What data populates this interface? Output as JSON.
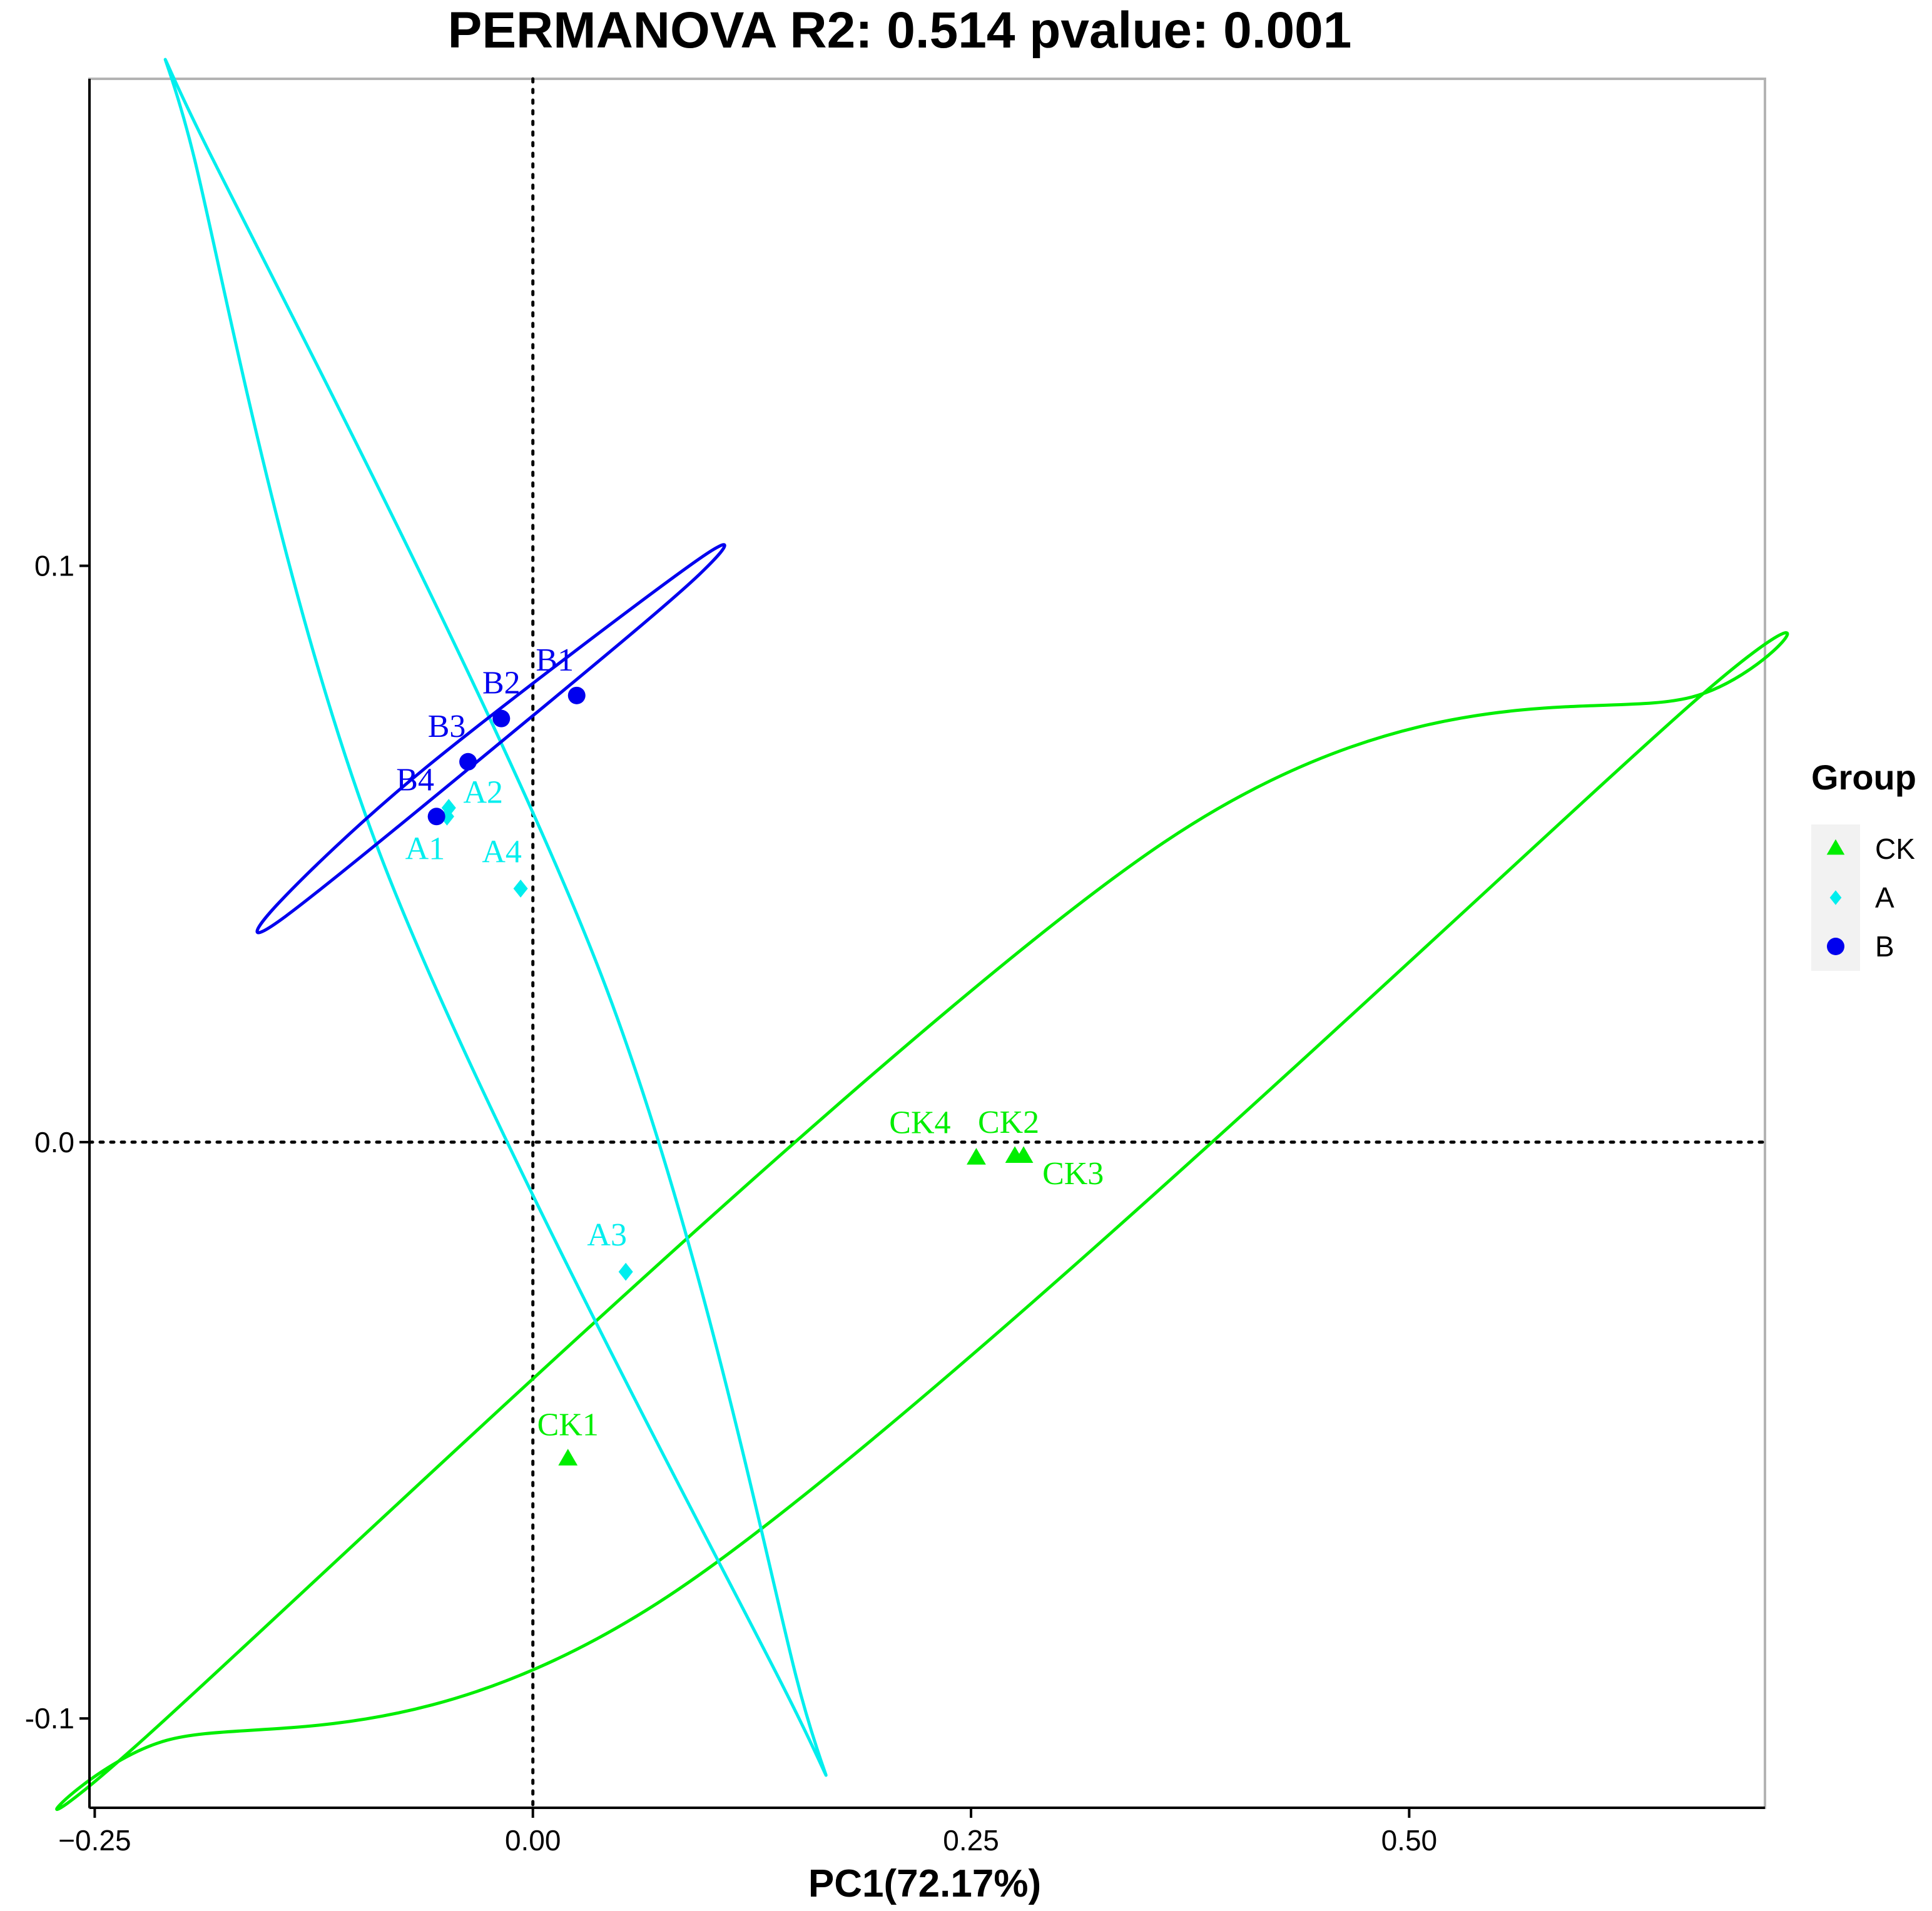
{
  "chart_data": {
    "type": "scatter",
    "title": "PERMANOVA R2: 0.514 pvalue: 0.001",
    "xlabel": "PC1(72.17%)",
    "ylabel": "",
    "xlim": [
      -0.253,
      0.703
    ],
    "ylim": [
      -0.1155,
      0.1845
    ],
    "xticks": [
      {
        "value": -0.25,
        "label": "−0.25"
      },
      {
        "value": 0.0,
        "label": "0.00"
      },
      {
        "value": 0.25,
        "label": "0.25"
      },
      {
        "value": 0.5,
        "label": "0.50"
      }
    ],
    "yticks": [
      {
        "value": 0.1,
        "label": "0.1"
      },
      {
        "value": 0.0,
        "label": "0.0"
      },
      {
        "value": -0.1,
        "label": "-0.1"
      }
    ],
    "reference_lines": {
      "x": 0,
      "y": 0,
      "style": "dotted"
    },
    "grid": false,
    "legend": {
      "title": "Group",
      "position": "right"
    },
    "series": [
      {
        "name": "CK",
        "color": "#00ee00",
        "marker": "triangle",
        "points": [
          {
            "label": "CK1",
            "x": 0.02,
            "y": -0.055
          },
          {
            "label": "CK2",
            "x": 0.275,
            "y": -0.0025
          },
          {
            "label": "CK3",
            "x": 0.28,
            "y": -0.0025
          },
          {
            "label": "CK4",
            "x": 0.253,
            "y": -0.0028
          }
        ],
        "ellipse": [
          [
            -0.209,
            -0.1038
          ],
          [
            -0.22,
            -0.103
          ],
          [
            0.36,
            0.052
          ],
          [
            0.661,
            0.0772
          ],
          [
            0.659,
            0.0755
          ],
          [
            0.084,
            -0.0774
          ]
        ]
      },
      {
        "name": "A",
        "color": "#00eeee",
        "marker": "diamond",
        "points": [
          {
            "label": "A1",
            "x": -0.049,
            "y": 0.0565
          },
          {
            "label": "A2",
            "x": -0.048,
            "y": 0.058
          },
          {
            "label": "A3",
            "x": 0.053,
            "y": -0.0225
          },
          {
            "label": "A4",
            "x": -0.007,
            "y": 0.044
          }
        ],
        "ellipse": [
          [
            -0.185,
            0.172
          ],
          [
            -0.193,
            0.1705
          ],
          [
            -0.086,
            0.049
          ],
          [
            0.142,
            -0.094
          ],
          [
            0.15,
            -0.0925
          ],
          [
            0.039,
            0.029
          ]
        ]
      },
      {
        "name": "B",
        "color": "#0000ee",
        "marker": "circle",
        "points": [
          {
            "label": "B1",
            "x": 0.025,
            "y": 0.0775
          },
          {
            "label": "B2",
            "x": -0.018,
            "y": 0.0735
          },
          {
            "label": "B3",
            "x": -0.037,
            "y": 0.066
          },
          {
            "label": "B4",
            "x": -0.055,
            "y": 0.0565
          }
        ],
        "ellipse": [
          [
            -0.141,
            0.0392
          ],
          [
            -0.145,
            0.0415
          ],
          [
            -0.061,
            0.065
          ],
          [
            0.093,
            0.1008
          ],
          [
            0.095,
            0.0985
          ],
          [
            0.004,
            0.075
          ]
        ]
      }
    ]
  }
}
